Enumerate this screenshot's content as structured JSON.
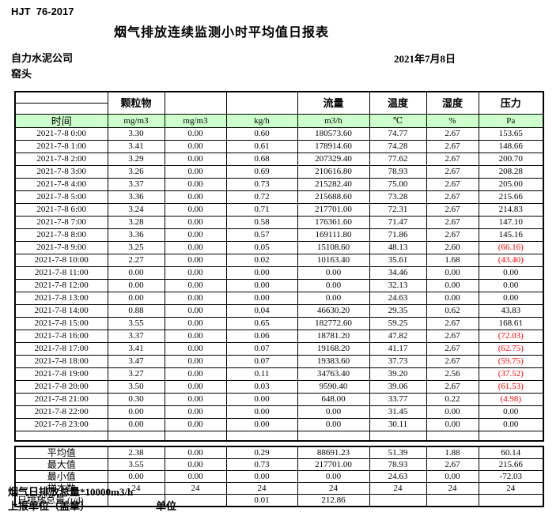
{
  "meta": {
    "standard_no": "HJT  76-2017",
    "title": "烟气排放连续监测小时平均值日报表",
    "company": "自力水泥公司",
    "station": "窑头",
    "date": "2021年7月8日"
  },
  "colors": {
    "header_green": "#ccffcc",
    "negative_red": "#ff0000"
  },
  "table": {
    "group_headers": {
      "pm": "颗粒物",
      "flow": "流量",
      "temperature": "温度",
      "humidity": "湿度",
      "pressure": "压力"
    },
    "unit_row": [
      "时间",
      "mg/m3",
      "mg/m3",
      "kg/h",
      "m3/h",
      "℃",
      "%",
      "Pa"
    ],
    "rows": [
      {
        "time": "2021-7-8 0:00",
        "values": [
          "3.30",
          "0.00",
          "0.60",
          "180573.60",
          "74.77",
          "2.67",
          "153.65"
        ]
      },
      {
        "time": "2021-7-8 1:00",
        "values": [
          "3.41",
          "0.00",
          "0.61",
          "178914.60",
          "74.28",
          "2.67",
          "148.66"
        ]
      },
      {
        "time": "2021-7-8 2:00",
        "values": [
          "3.29",
          "0.00",
          "0.68",
          "207329.40",
          "77.62",
          "2.67",
          "200.70"
        ]
      },
      {
        "time": "2021-7-8 3:00",
        "values": [
          "3.26",
          "0.00",
          "0.69",
          "210616.80",
          "78.93",
          "2.67",
          "208.28"
        ]
      },
      {
        "time": "2021-7-8 4:00",
        "values": [
          "3.37",
          "0.00",
          "0.73",
          "215282.40",
          "75.00",
          "2.67",
          "205.00"
        ]
      },
      {
        "time": "2021-7-8 5:00",
        "values": [
          "3.36",
          "0.00",
          "0.72",
          "215688.60",
          "73.28",
          "2.67",
          "215.66"
        ]
      },
      {
        "time": "2021-7-8 6:00",
        "values": [
          "3.24",
          "0.00",
          "0.71",
          "217701.00",
          "72.31",
          "2.67",
          "214.83"
        ]
      },
      {
        "time": "2021-7-8 7:00",
        "values": [
          "3.28",
          "0.00",
          "0.58",
          "176361.60",
          "71.47",
          "2.67",
          "147.10"
        ]
      },
      {
        "time": "2021-7-8 8:00",
        "values": [
          "3.36",
          "0.00",
          "0.57",
          "169111.80",
          "71.86",
          "2.67",
          "145.16"
        ]
      },
      {
        "time": "2021-7-8 9:00",
        "values": [
          "3.25",
          "0.00",
          "0.05",
          "15108.60",
          "48.13",
          "2.60",
          "(66.16)"
        ]
      },
      {
        "time": "2021-7-8 10:00",
        "values": [
          "2.27",
          "0.00",
          "0.02",
          "10163.40",
          "35.61",
          "1.68",
          "(43.40)"
        ]
      },
      {
        "time": "2021-7-8 11:00",
        "values": [
          "0.00",
          "0.00",
          "0.00",
          "0.00",
          "34.46",
          "0.00",
          "0.00"
        ]
      },
      {
        "time": "2021-7-8 12:00",
        "values": [
          "0.00",
          "0.00",
          "0.00",
          "0.00",
          "32.13",
          "0.00",
          "0.00"
        ]
      },
      {
        "time": "2021-7-8 13:00",
        "values": [
          "0.00",
          "0.00",
          "0.00",
          "0.00",
          "24.63",
          "0.00",
          "0.00"
        ]
      },
      {
        "time": "2021-7-8 14:00",
        "values": [
          "0.88",
          "0.00",
          "0.04",
          "46630.20",
          "29.35",
          "0.62",
          "43.83"
        ]
      },
      {
        "time": "2021-7-8 15:00",
        "values": [
          "3.55",
          "0.00",
          "0.65",
          "182772.60",
          "59.25",
          "2.67",
          "168.61"
        ]
      },
      {
        "time": "2021-7-8 16:00",
        "values": [
          "3.37",
          "0.00",
          "0.06",
          "18781.20",
          "47.82",
          "2.67",
          "(72.03)"
        ]
      },
      {
        "time": "2021-7-8 17:00",
        "values": [
          "3.41",
          "0.00",
          "0.07",
          "19168.20",
          "41.17",
          "2.67",
          "(62.75)"
        ]
      },
      {
        "time": "2021-7-8 18:00",
        "values": [
          "3.47",
          "0.00",
          "0.07",
          "19383.60",
          "37.73",
          "2.67",
          "(59.75)"
        ]
      },
      {
        "time": "2021-7-8 19:00",
        "values": [
          "3.27",
          "0.00",
          "0.11",
          "34763.40",
          "39.20",
          "2.56",
          "(37.52)"
        ]
      },
      {
        "time": "2021-7-8 20:00",
        "values": [
          "3.50",
          "0.00",
          "0.03",
          "9590.40",
          "39.06",
          "2.67",
          "(61.53)"
        ]
      },
      {
        "time": "2021-7-8 21:00",
        "values": [
          "0.30",
          "0.00",
          "0.00",
          "648.00",
          "33.77",
          "0.22",
          "(4.98)"
        ]
      },
      {
        "time": "2021-7-8 22:00",
        "values": [
          "0.00",
          "0.00",
          "0.00",
          "0.00",
          "31.45",
          "0.00",
          "0.00"
        ]
      },
      {
        "time": "2021-7-8 23:00",
        "values": [
          "0.00",
          "0.00",
          "0.00",
          "0.00",
          "30.11",
          "0.00",
          "0.00"
        ]
      }
    ],
    "summary": [
      {
        "label": "平均值",
        "values": [
          "2.38",
          "0.00",
          "0.29",
          "88691.23",
          "51.39",
          "1.88",
          "60.14"
        ]
      },
      {
        "label": "最大值",
        "values": [
          "3.55",
          "0.00",
          "0.73",
          "217701.00",
          "78.93",
          "2.67",
          "215.66"
        ]
      },
      {
        "label": "最小值",
        "values": [
          "0.00",
          "0.00",
          "0.00",
          "0.00",
          "24.63",
          "0.00",
          "-72.03"
        ]
      },
      {
        "label": "样本数",
        "values": [
          "24",
          "24",
          "24",
          "24",
          "24",
          "24",
          "24"
        ]
      },
      {
        "label": "日排放总量 (t/d)",
        "values": [
          "",
          "",
          "0.01",
          "212.86",
          "",
          "",
          ""
        ],
        "label_align": "left"
      }
    ]
  },
  "footer": {
    "note": "烟气日排放总量*10000m3/h",
    "report_unit_label": "上报单位（盖章）",
    "unit_label": "单位"
  }
}
